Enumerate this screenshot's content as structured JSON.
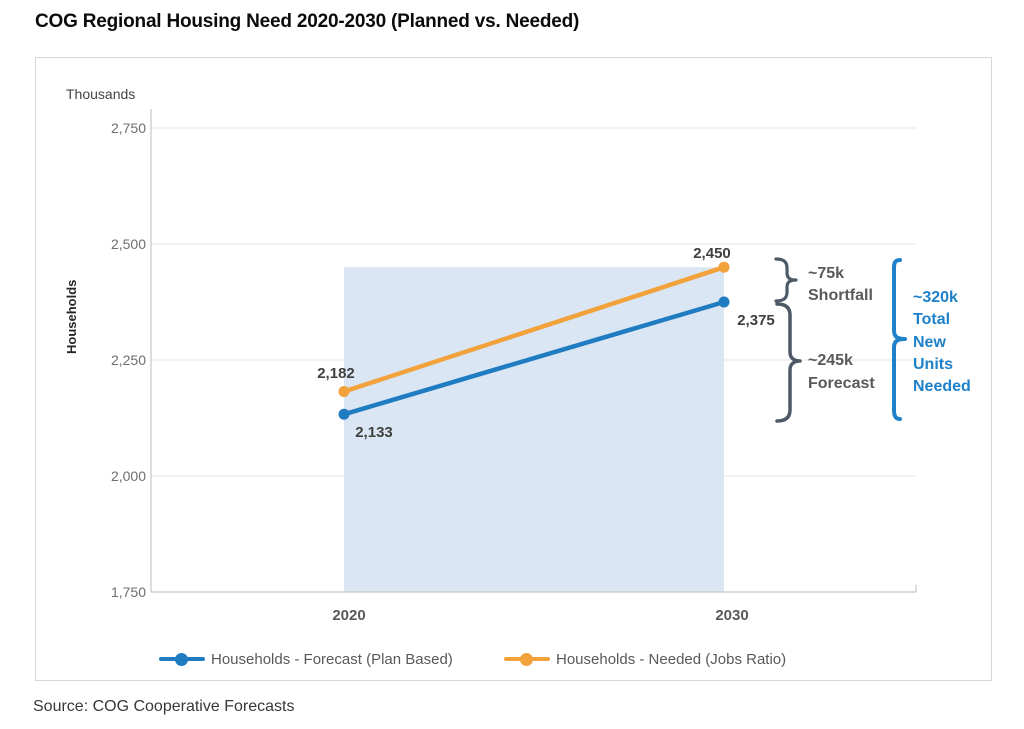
{
  "page": {
    "title": "COG Regional Housing Need 2020-2030 (Planned vs. Needed)",
    "source": "Source: COG Cooperative Forecasts"
  },
  "colors": {
    "forecast_blue": "#1f7cc0",
    "needed_orange": "#f2a23b",
    "shaded_band": "#dae6f3",
    "gridline": "#e5e5e5",
    "axis_line": "#c6c6c6",
    "brace_gray": "#4d5966",
    "annotation_gray": "#595959",
    "annotation_blue": "#1e81c9"
  },
  "legend": {
    "items": [
      {
        "label": "Households - Forecast (Plan Based)",
        "color": "#1f7cc0"
      },
      {
        "label": "Households - Needed (Jobs Ratio)",
        "color": "#f2a23b"
      }
    ]
  },
  "chart_data": {
    "type": "line",
    "title": "COG Regional Housing Need 2020-2030 (Planned vs. Needed)",
    "unit_label": "Thousands",
    "ylabel": "Households",
    "xlabel": "",
    "grid": true,
    "legend_position": "bottom",
    "x_categories": [
      "2020",
      "2030"
    ],
    "ylim": [
      1750,
      2750
    ],
    "yticks": [
      {
        "value": 2750,
        "label": "2,750"
      },
      {
        "value": 2500,
        "label": "2,500"
      },
      {
        "value": 2250,
        "label": "2,250"
      },
      {
        "value": 2000,
        "label": "2,000"
      },
      {
        "value": 1750,
        "label": "1,750"
      }
    ],
    "series": [
      {
        "name": "Households - Forecast (Plan Based)",
        "color": "#1f7cc0",
        "values": [
          2133,
          2375
        ],
        "point_labels": [
          "2,133",
          "2,375"
        ]
      },
      {
        "name": "Households - Needed (Jobs Ratio)",
        "color": "#f2a23b",
        "values": [
          2182,
          2450
        ],
        "point_labels": [
          "2,182",
          "2,450"
        ]
      }
    ],
    "shaded_band": {
      "x_from": "2020",
      "x_to": "2030",
      "y_from": 1750,
      "y_to": 2450,
      "color": "#dae6f3"
    },
    "annotations": [
      {
        "id": "shortfall",
        "lines": [
          "~75k",
          "Shortfall"
        ],
        "from": 2375,
        "to": 2450,
        "color": "#595959"
      },
      {
        "id": "forecast",
        "lines": [
          "~245k",
          "Forecast"
        ],
        "from": 2133,
        "to": 2375,
        "color": "#595959"
      },
      {
        "id": "total",
        "lines": [
          "~320k",
          "Total",
          "New",
          "Units",
          "Needed"
        ],
        "from": 2133,
        "to": 2450,
        "color": "#1e81c9"
      }
    ]
  }
}
